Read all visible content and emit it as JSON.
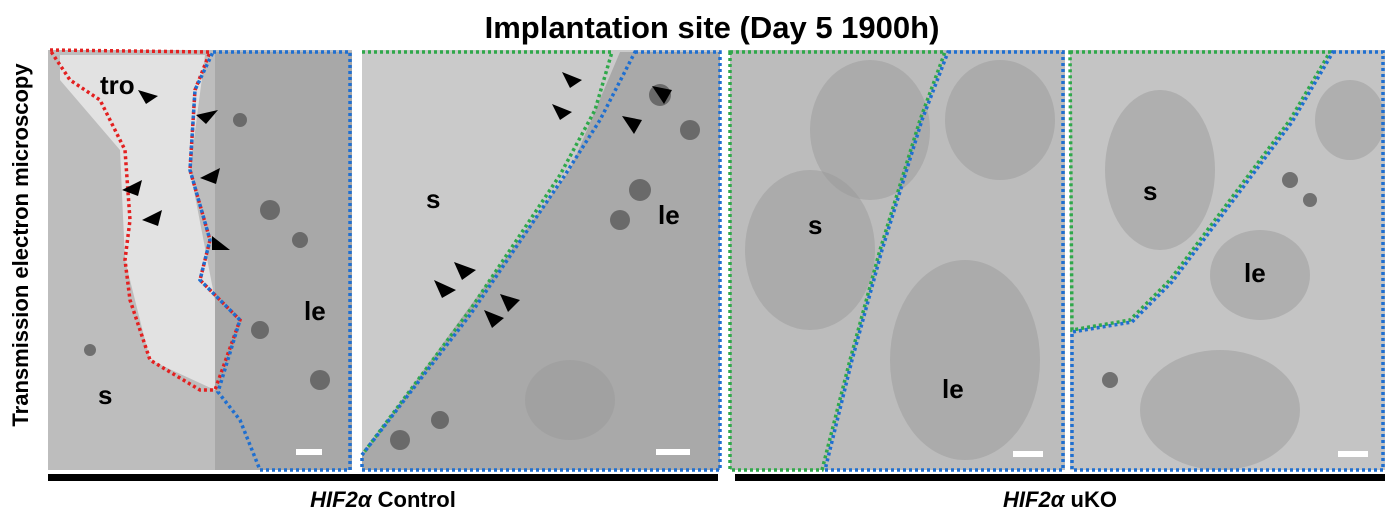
{
  "title": "Implantation site (Day 5   1900h)",
  "y_label": "Transmission electron microscopy",
  "panels": [
    {
      "labels": [
        "tro",
        "s",
        "le"
      ]
    },
    {
      "labels": [
        "s",
        "le"
      ]
    },
    {
      "labels": [
        "s",
        "le"
      ]
    },
    {
      "labels": [
        "s",
        "le"
      ]
    }
  ],
  "groups": [
    {
      "gene": "HIF2α",
      "condition": "Control"
    },
    {
      "gene": "HIF2α",
      "condition": "uKO"
    }
  ]
}
